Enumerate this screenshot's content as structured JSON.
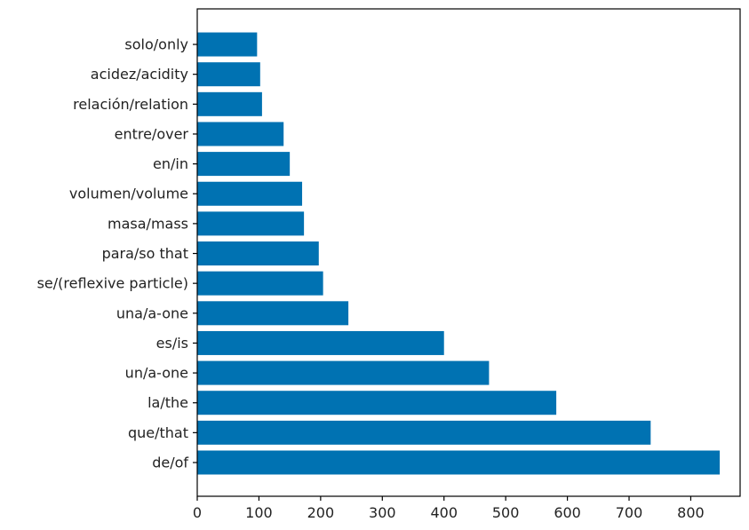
{
  "chart_data": {
    "type": "bar",
    "orientation": "horizontal",
    "categories": [
      "de/of",
      "que/that",
      "la/the",
      "un/a-one",
      "es/is",
      "una/a-one",
      "se/(reflexive particle)",
      "para/so that",
      "masa/mass",
      "volumen/volume",
      "en/in",
      "entre/over",
      "relación/relation",
      "acidez/acidity",
      "solo/only"
    ],
    "values": [
      847,
      735,
      582,
      473,
      400,
      245,
      204,
      197,
      173,
      170,
      150,
      140,
      105,
      102,
      97
    ],
    "xlim": [
      0,
      880
    ],
    "xticks": [
      0,
      100,
      200,
      300,
      400,
      500,
      600,
      700,
      800
    ],
    "bar_color": "#0072b2",
    "title": "",
    "xlabel": "",
    "ylabel": "",
    "grid": false,
    "legend": "none"
  }
}
